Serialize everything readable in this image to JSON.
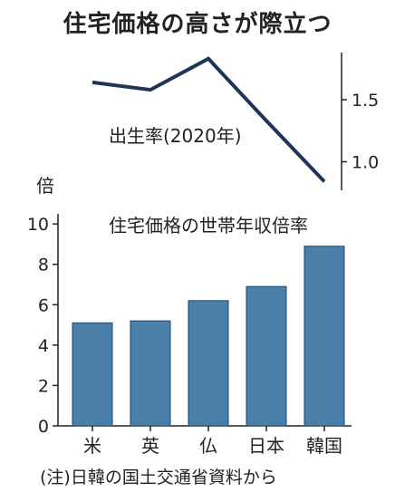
{
  "title": "住宅価格の高さが際立つ",
  "note": "(注)日韓の国土交通省資料から",
  "chart_data": [
    {
      "type": "line",
      "series_label": "出生率(2020年)",
      "categories": [
        "米",
        "英",
        "仏",
        "日本",
        "韓国"
      ],
      "values": [
        1.64,
        1.58,
        1.83,
        1.33,
        0.84
      ],
      "y_axis_position": "right",
      "y_ticks": [
        1.5,
        1.0
      ],
      "ylim": [
        0.77,
        1.88
      ],
      "grid": false,
      "color": "#1f3557"
    },
    {
      "type": "bar",
      "series_label": "住宅価格の世帯年収倍率",
      "ylabel": "倍",
      "categories": [
        "米",
        "英",
        "仏",
        "日本",
        "韓国"
      ],
      "values": [
        5.1,
        5.2,
        6.2,
        6.9,
        8.9
      ],
      "ylim": [
        0,
        10.5
      ],
      "y_ticks": [
        0,
        2,
        4,
        6,
        8,
        10
      ],
      "grid": false,
      "color": "#4a7fa8"
    }
  ]
}
